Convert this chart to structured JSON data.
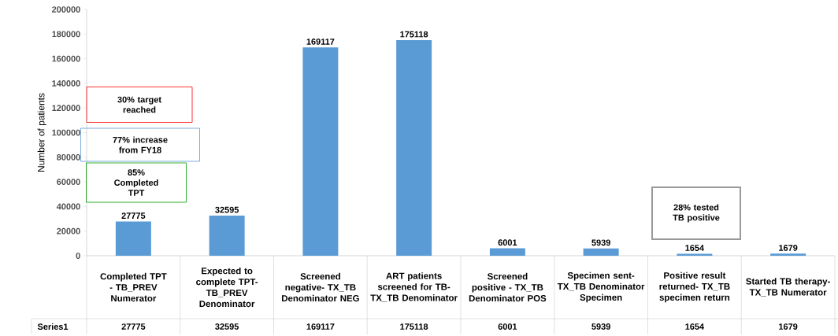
{
  "chart_data": {
    "type": "bar",
    "ylabel": "Number of patients",
    "categories": [
      "Completed TPT - TB_PREV Numerator",
      "Expected to complete TPT- TB_PREV Denominator",
      "Screened negative- TX_TB Denominator NEG",
      "ART patients screened for TB- TX_TB Denominator",
      "Screened positive - TX_TB Denominator POS",
      "Specimen sent- TX_TB Denominator Specimen",
      "Positive result returned- TX_TB specimen return",
      "Started TB therapy- TX_TB Numerator"
    ],
    "series": [
      {
        "name": "Series1",
        "color": "#5b9bd5",
        "values": [
          27775,
          32595,
          169117,
          175118,
          6001,
          5939,
          1654,
          1679
        ],
        "value_labels": [
          "27775",
          "32595",
          "169117",
          "175118",
          "6001",
          "5939",
          "1654",
          "1679"
        ]
      }
    ],
    "ylim": [
      0,
      200000
    ],
    "yticks": [
      0,
      20000,
      40000,
      60000,
      80000,
      100000,
      120000,
      140000,
      160000,
      180000,
      200000
    ],
    "data_labels": true,
    "annotations": [
      "30% target reached",
      "77% increase from FY18",
      "85% Completed TPT",
      "28% tested TB positive"
    ]
  }
}
